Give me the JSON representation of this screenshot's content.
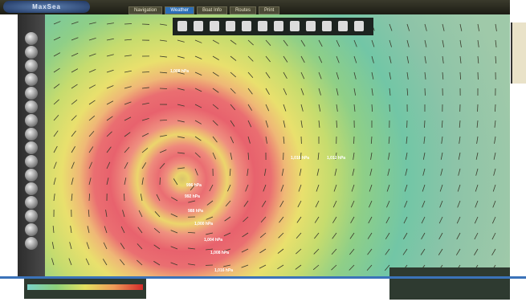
{
  "header": {
    "logo": "MaxSea",
    "tabs": [
      "Navigation",
      "Weather",
      "Boat Info",
      "Routes",
      "Print"
    ]
  },
  "map": {
    "labels": [
      "1,008 hPa",
      "1,016 hPa",
      "1,012 hPa",
      "996 hPa",
      "992 hPa",
      "988 hPa",
      "1,000 hPa",
      "1,004 hPa",
      "1,008 hPa",
      "1,016 hPa"
    ]
  }
}
